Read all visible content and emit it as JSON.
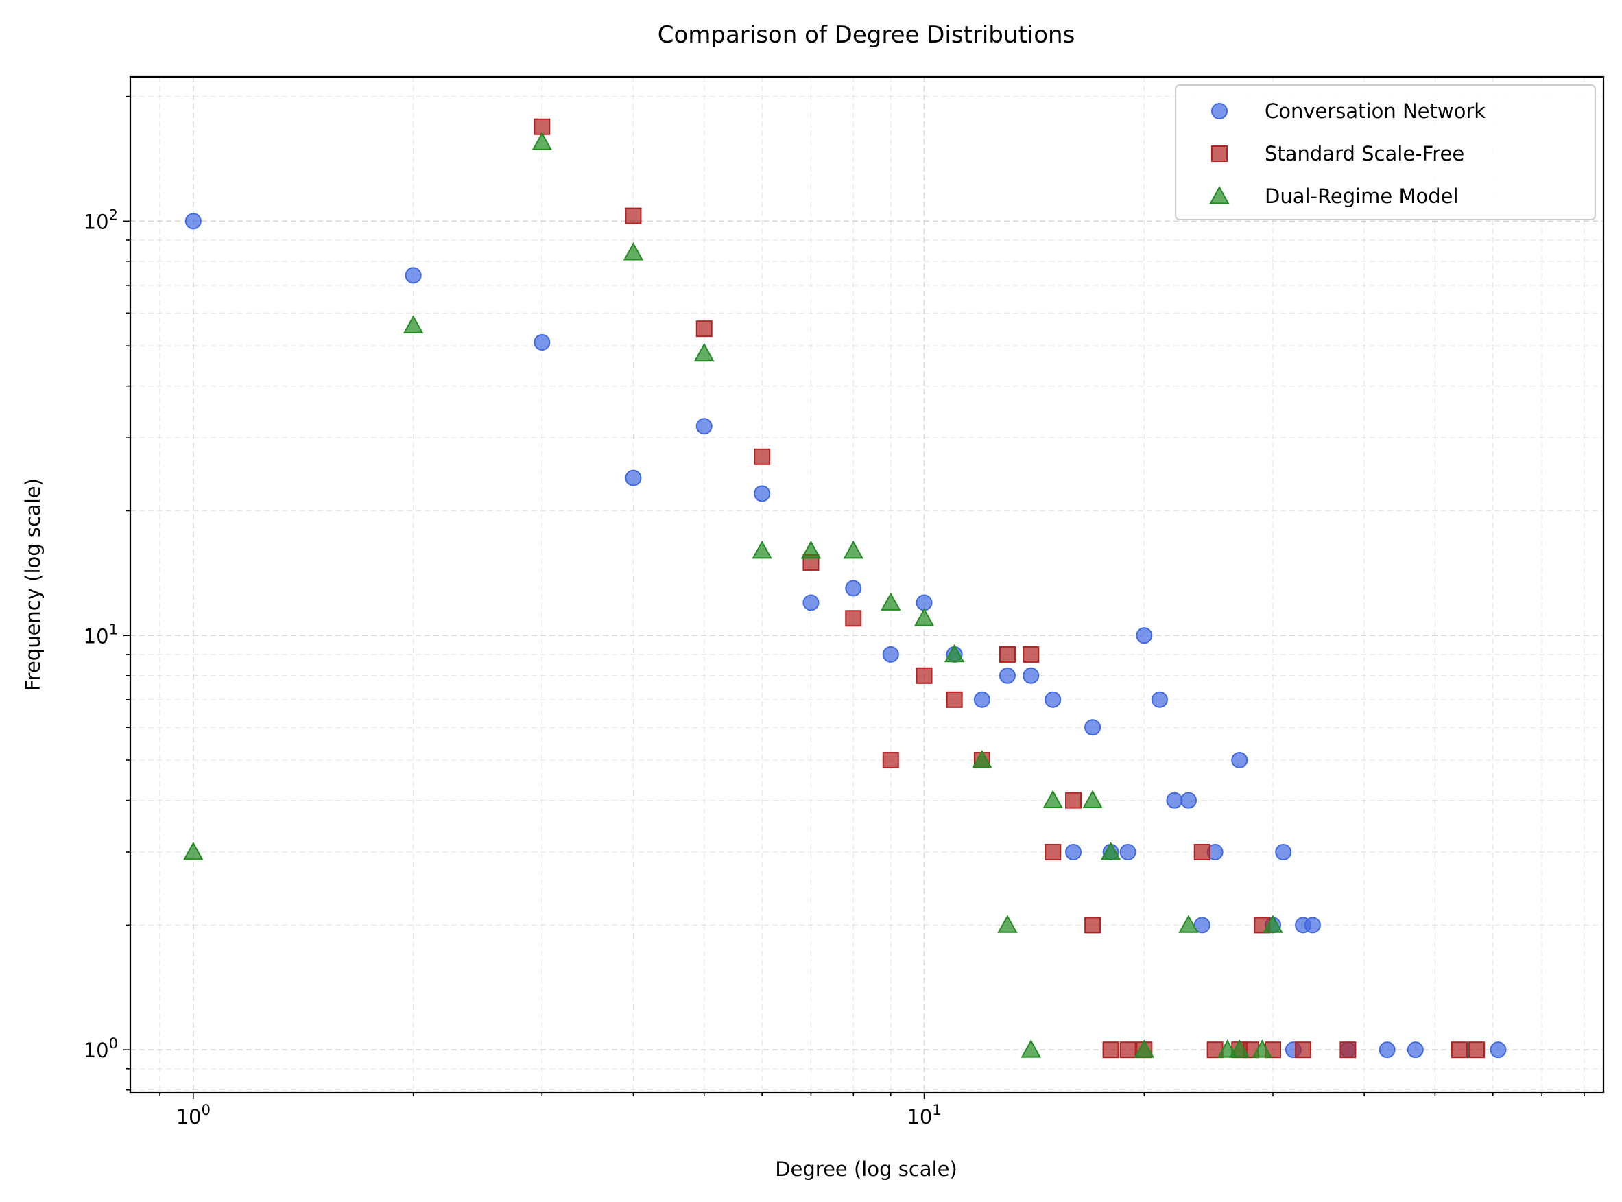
{
  "chart_data": {
    "type": "scatter",
    "title": "Comparison of Degree Distributions",
    "xlabel": "Degree (log scale)",
    "ylabel": "Frequency (log scale)",
    "x_scale": "log",
    "y_scale": "log",
    "xlim": [
      0.82,
      85
    ],
    "ylim": [
      0.79,
      223
    ],
    "grid": true,
    "legend_position": "top-right",
    "x_ticks": [
      {
        "value": 1,
        "base": "10",
        "exp": "0"
      },
      {
        "value": 10,
        "base": "10",
        "exp": "1"
      }
    ],
    "y_ticks": [
      {
        "value": 1,
        "base": "10",
        "exp": "0"
      },
      {
        "value": 10,
        "base": "10",
        "exp": "1"
      },
      {
        "value": 100,
        "base": "10",
        "exp": "2"
      }
    ],
    "series": [
      {
        "name": "Conversation Network",
        "marker": "circle",
        "color": "#4169e1",
        "points": [
          [
            1,
            100
          ],
          [
            2,
            74
          ],
          [
            3,
            51
          ],
          [
            4,
            24
          ],
          [
            5,
            32
          ],
          [
            6,
            22
          ],
          [
            7,
            12
          ],
          [
            8,
            13
          ],
          [
            9,
            9
          ],
          [
            10,
            12
          ],
          [
            11,
            9
          ],
          [
            12,
            7
          ],
          [
            13,
            8
          ],
          [
            14,
            8
          ],
          [
            15,
            7
          ],
          [
            16,
            3
          ],
          [
            17,
            6
          ],
          [
            18,
            3
          ],
          [
            19,
            3
          ],
          [
            20,
            10
          ],
          [
            21,
            7
          ],
          [
            22,
            4
          ],
          [
            23,
            4
          ],
          [
            24,
            2
          ],
          [
            25,
            3
          ],
          [
            27,
            5
          ],
          [
            30,
            2
          ],
          [
            31,
            3
          ],
          [
            32,
            1
          ],
          [
            33,
            2
          ],
          [
            34,
            2
          ],
          [
            38,
            1
          ],
          [
            43,
            1
          ],
          [
            47,
            1
          ],
          [
            61,
            1
          ]
        ]
      },
      {
        "name": "Standard Scale-Free",
        "marker": "square",
        "color": "#b22222",
        "points": [
          [
            3,
            169
          ],
          [
            4,
            103
          ],
          [
            5,
            55
          ],
          [
            6,
            27
          ],
          [
            7,
            15
          ],
          [
            8,
            11
          ],
          [
            9,
            5
          ],
          [
            10,
            8
          ],
          [
            11,
            7
          ],
          [
            12,
            5
          ],
          [
            13,
            9
          ],
          [
            14,
            9
          ],
          [
            15,
            3
          ],
          [
            16,
            4
          ],
          [
            17,
            2
          ],
          [
            18,
            1
          ],
          [
            19,
            1
          ],
          [
            20,
            1
          ],
          [
            24,
            3
          ],
          [
            25,
            1
          ],
          [
            27,
            1
          ],
          [
            28,
            1
          ],
          [
            29,
            2
          ],
          [
            30,
            1
          ],
          [
            33,
            1
          ],
          [
            38,
            1
          ],
          [
            54,
            1
          ],
          [
            57,
            1
          ]
        ]
      },
      {
        "name": "Dual-Regime Model",
        "marker": "triangle",
        "color": "#228b22",
        "points": [
          [
            1,
            3
          ],
          [
            2,
            56
          ],
          [
            3,
            155
          ],
          [
            4,
            84
          ],
          [
            5,
            48
          ],
          [
            6,
            16
          ],
          [
            7,
            16
          ],
          [
            8,
            16
          ],
          [
            9,
            12
          ],
          [
            10,
            11
          ],
          [
            11,
            9
          ],
          [
            12,
            5
          ],
          [
            13,
            2
          ],
          [
            14,
            1
          ],
          [
            15,
            4
          ],
          [
            17,
            4
          ],
          [
            18,
            3
          ],
          [
            20,
            1
          ],
          [
            23,
            2
          ],
          [
            26,
            1
          ],
          [
            27,
            1
          ],
          [
            29,
            1
          ],
          [
            30,
            2
          ]
        ]
      }
    ]
  }
}
